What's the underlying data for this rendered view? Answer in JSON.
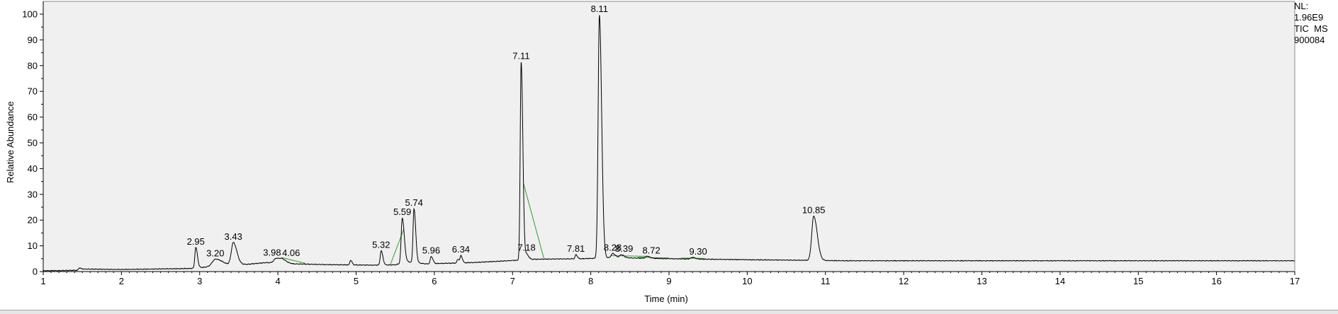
{
  "info": {
    "nl_label": "NL:",
    "nl_value": "1.96E9",
    "trace": "TIC  MS",
    "sample_id": "900084"
  },
  "colors": {
    "plot_background": "#f0f0f0",
    "trace": "#000000",
    "baseline_marks": "#2e9e2e"
  },
  "chart_data": {
    "type": "line",
    "title": "",
    "xlabel": "Time (min)",
    "ylabel": "Relative Abundance",
    "xlim": [
      1,
      17
    ],
    "ylim": [
      0,
      100
    ],
    "x_ticks": [
      1,
      2,
      3,
      4,
      5,
      6,
      7,
      8,
      9,
      10,
      11,
      12,
      13,
      14,
      15,
      16,
      17
    ],
    "y_ticks": [
      0,
      10,
      20,
      30,
      40,
      50,
      60,
      70,
      80,
      90,
      100
    ],
    "grid": false,
    "legend": "none",
    "baseline": [
      [
        1.0,
        0.3
      ],
      [
        1.45,
        0.5
      ],
      [
        1.5,
        1.0
      ],
      [
        2.0,
        0.8
      ],
      [
        2.9,
        1.2
      ],
      [
        3.1,
        1.8
      ],
      [
        3.3,
        2.8
      ],
      [
        3.6,
        2.8
      ],
      [
        3.85,
        3.5
      ],
      [
        4.2,
        3.0
      ],
      [
        4.6,
        2.7
      ],
      [
        5.2,
        2.5
      ],
      [
        5.5,
        2.6
      ],
      [
        5.65,
        3.8
      ],
      [
        5.9,
        3.0
      ],
      [
        6.5,
        3.5
      ],
      [
        7.0,
        4.3
      ],
      [
        7.3,
        4.8
      ],
      [
        7.9,
        5.0
      ],
      [
        8.3,
        5.4
      ],
      [
        9.0,
        5.0
      ],
      [
        10.0,
        4.6
      ],
      [
        10.7,
        4.4
      ],
      [
        11.2,
        4.2
      ],
      [
        13.0,
        4.2
      ],
      [
        17.0,
        4.2
      ]
    ],
    "peaks": [
      {
        "rt": 1.46,
        "height": 0.8,
        "width": 0.01,
        "label": ""
      },
      {
        "rt": 2.95,
        "height": 8.0,
        "width": 0.012,
        "label": "2.95"
      },
      {
        "rt": 3.2,
        "height": 2.5,
        "width": 0.04,
        "label": "3.20"
      },
      {
        "rt": 3.43,
        "height": 8.5,
        "width": 0.025,
        "label": "3.43"
      },
      {
        "rt": 3.98,
        "height": 1.8,
        "width": 0.03,
        "label": "3.98"
      },
      {
        "rt": 4.06,
        "height": 1.2,
        "width": 0.03,
        "label": "4.06"
      },
      {
        "rt": 4.93,
        "height": 1.8,
        "width": 0.01,
        "label": ""
      },
      {
        "rt": 5.32,
        "height": 5.5,
        "width": 0.012,
        "label": "5.32"
      },
      {
        "rt": 5.59,
        "height": 17.5,
        "width": 0.014,
        "label": "5.59"
      },
      {
        "rt": 5.74,
        "height": 21.0,
        "width": 0.012,
        "label": "5.74"
      },
      {
        "rt": 5.96,
        "height": 2.8,
        "width": 0.012,
        "label": "5.96"
      },
      {
        "rt": 6.3,
        "height": 1.5,
        "width": 0.01,
        "label": ""
      },
      {
        "rt": 6.34,
        "height": 2.8,
        "width": 0.01,
        "label": "6.34"
      },
      {
        "rt": 7.11,
        "height": 77.0,
        "width": 0.012,
        "label": "7.11"
      },
      {
        "rt": 7.18,
        "height": 2.0,
        "width": 0.015,
        "label": "7.18"
      },
      {
        "rt": 7.81,
        "height": 1.6,
        "width": 0.01,
        "label": "7.81"
      },
      {
        "rt": 8.11,
        "height": 94.5,
        "width": 0.016,
        "label": "8.11"
      },
      {
        "rt": 8.28,
        "height": 1.6,
        "width": 0.02,
        "label": "8.28"
      },
      {
        "rt": 8.39,
        "height": 1.2,
        "width": 0.02,
        "label": "8.39"
      },
      {
        "rt": 8.72,
        "height": 0.8,
        "width": 0.02,
        "label": "8.72"
      },
      {
        "rt": 9.3,
        "height": 0.6,
        "width": 0.02,
        "label": "9.30"
      },
      {
        "rt": 10.85,
        "height": 17.2,
        "width": 0.025,
        "label": "10.85"
      }
    ]
  }
}
